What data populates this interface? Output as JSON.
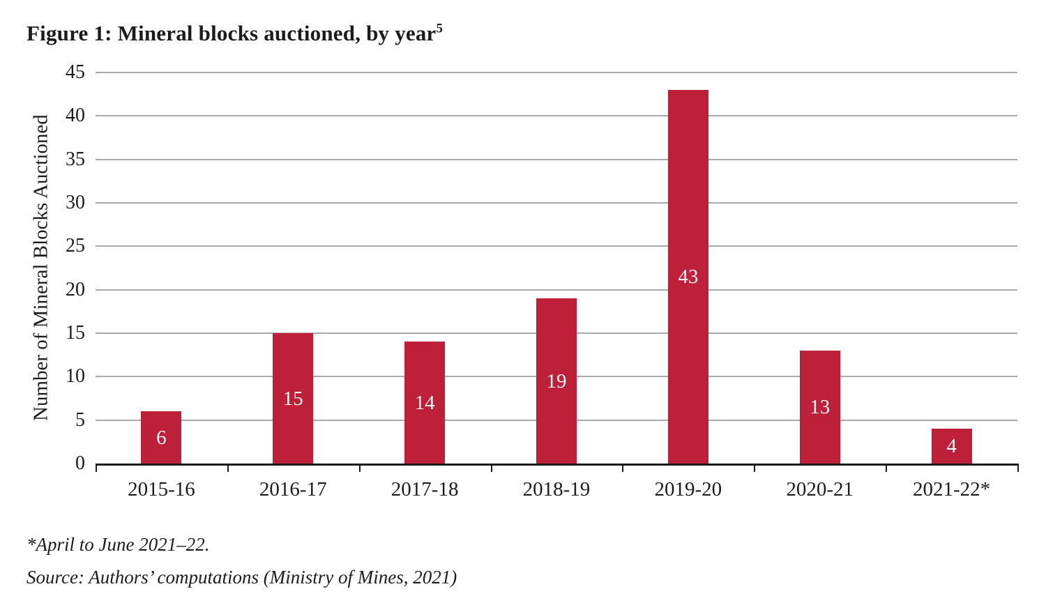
{
  "figure": {
    "title": "Figure 1: Mineral blocks auctioned, by year",
    "title_superscript": "5",
    "footnote": "*April to June 2021–22.",
    "source": "Source: Authors’ computations (Ministry of Mines, 2021)"
  },
  "chart_data": {
    "type": "bar",
    "title": "Figure 1: Mineral blocks auctioned, by year",
    "categories": [
      "2015-16",
      "2016-17",
      "2017-18",
      "2018-19",
      "2019-20",
      "2020-21",
      "2021-22*"
    ],
    "values": [
      6,
      15,
      14,
      19,
      43,
      13,
      4
    ],
    "xlabel": "",
    "ylabel": "Number of Mineral Blocks Auctioned",
    "ylim": [
      0,
      45
    ],
    "yticks": [
      0,
      5,
      10,
      15,
      20,
      25,
      30,
      35,
      40,
      45
    ],
    "grid": true,
    "legend": false,
    "bar_color": "#be2039",
    "value_label_color": "#fbfaf7",
    "gridline_color": "#a9a9a9",
    "axis_color": "#1a1a1a",
    "text_color": "#1c1c1c"
  }
}
